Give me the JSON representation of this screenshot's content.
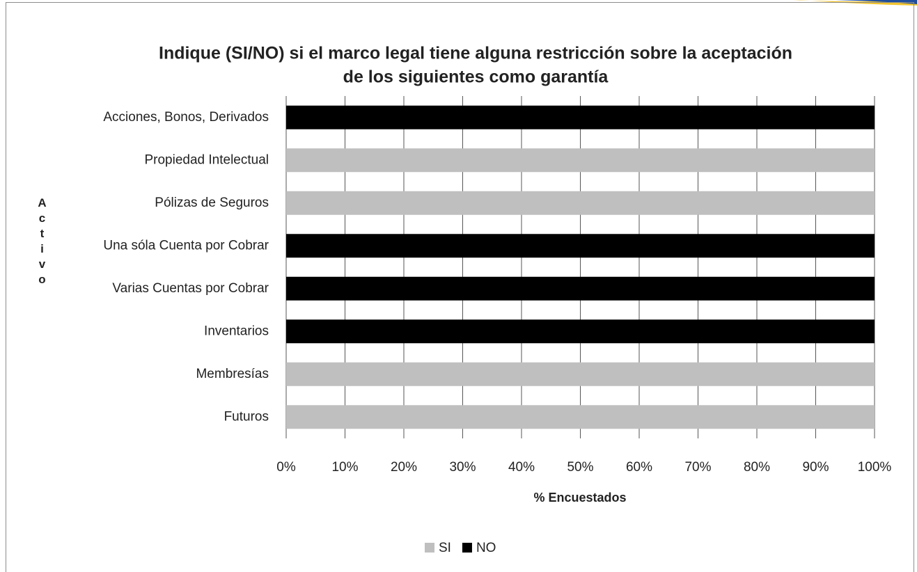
{
  "chart_data": {
    "type": "stacked_barh",
    "title": [
      "Indique (SI/NO) si el marco legal tiene alguna restricción sobre la aceptación",
      "de los siguientes como garantía"
    ],
    "x_label": "% Encuestados",
    "y_label": "Activo",
    "categories": [
      "Acciones, Bonos, Derivados",
      "Propiedad Intelectual",
      "Pólizas de Seguros",
      "Una sóla Cuenta por Cobrar",
      "Varias Cuentas por Cobrar",
      "Inventarios",
      "Membresías",
      "Futuros"
    ],
    "series": [
      {
        "name": "SI",
        "color": "#bfbfbf",
        "values": [
          0,
          100,
          100,
          0,
          0,
          0,
          100,
          100
        ]
      },
      {
        "name": "NO",
        "color": "#000000",
        "values": [
          100,
          0,
          0,
          100,
          100,
          100,
          0,
          0
        ]
      }
    ],
    "xlim": [
      0,
      100
    ],
    "xticks": [
      {
        "value": 0,
        "label": "0%"
      },
      {
        "value": 10,
        "label": "10%"
      },
      {
        "value": 20,
        "label": "20%"
      },
      {
        "value": 30,
        "label": "30%"
      },
      {
        "value": 40,
        "label": "40%"
      },
      {
        "value": 50,
        "label": "50%"
      },
      {
        "value": 60,
        "label": "60%"
      },
      {
        "value": 70,
        "label": "70%"
      },
      {
        "value": 80,
        "label": "80%"
      },
      {
        "value": 90,
        "label": "90%"
      },
      {
        "value": 100,
        "label": "100%"
      }
    ],
    "grid": true,
    "legend": "bottom"
  }
}
